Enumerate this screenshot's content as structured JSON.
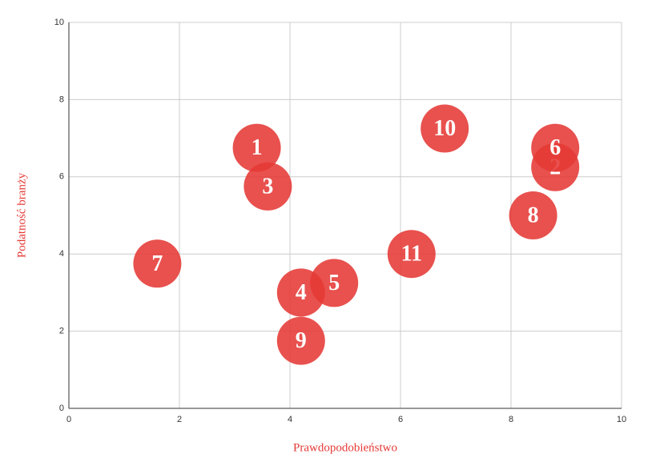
{
  "chart_data": {
    "type": "scatter",
    "xlabel": "Prawdopodobieństwo",
    "ylabel": "Podatność branży",
    "xlim": [
      0,
      10
    ],
    "ylim": [
      0,
      10
    ],
    "xticks": [
      0,
      2,
      4,
      6,
      8,
      10
    ],
    "yticks": [
      0,
      2,
      4,
      6,
      8,
      10
    ],
    "grid": true,
    "series": [
      {
        "color": "#e53935",
        "labels": [
          "1",
          "2",
          "3",
          "4",
          "5",
          "6",
          "7",
          "8",
          "9",
          "10",
          "11"
        ],
        "x": [
          3.4,
          8.8,
          3.6,
          4.2,
          4.8,
          8.8,
          1.6,
          8.4,
          4.2,
          6.8,
          6.2
        ],
        "values": [
          6.75,
          6.25,
          5.75,
          3,
          3.25,
          6.75,
          3.75,
          5,
          1.75,
          7.25,
          4
        ]
      }
    ]
  }
}
